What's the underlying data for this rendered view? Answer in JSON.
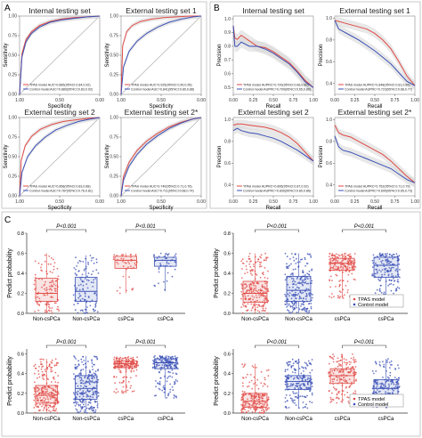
{
  "colors": {
    "tpas": "#e04a45",
    "control": "#3a4fb5",
    "tpas_fill": "#f2c4c0",
    "control_fill": "#c2cbe9",
    "band": "#d6d6d6",
    "frame": "#999999",
    "box": "#555555"
  },
  "panels": [
    {
      "letter": "A"
    },
    {
      "letter": "B"
    },
    {
      "letter": "C"
    }
  ],
  "chart_data": [
    {
      "id": "roc-internal",
      "type": "line",
      "title": "Internal testing set",
      "xlabel": "Specificity",
      "ylabel": "Sensitivity",
      "xticks": [
        "1.00",
        "0.50",
        "0.00"
      ],
      "yticks": [
        "0.00",
        "0.25",
        "0.50",
        "0.75",
        "1.00"
      ],
      "legend": [
        "TPAS model AUC=0.885(95%CI:0.84,0.92)",
        "Control model AUC=0.880(95%CI:0.83,0.92)"
      ],
      "series": [
        {
          "name": "TPAS model",
          "x": [
            1.0,
            0.97,
            0.92,
            0.85,
            0.75,
            0.62,
            0.48,
            0.32,
            0.15,
            0.0
          ],
          "y": [
            0.0,
            0.52,
            0.7,
            0.8,
            0.88,
            0.93,
            0.96,
            0.98,
            0.99,
            1.0
          ]
        },
        {
          "name": "Control model",
          "x": [
            1.0,
            0.97,
            0.92,
            0.85,
            0.75,
            0.62,
            0.48,
            0.32,
            0.15,
            0.0
          ],
          "y": [
            0.0,
            0.48,
            0.67,
            0.78,
            0.86,
            0.92,
            0.95,
            0.97,
            0.99,
            1.0
          ]
        }
      ]
    },
    {
      "id": "roc-ext1",
      "type": "line",
      "title": "External testing set 1",
      "xlabel": "Specificity",
      "ylabel": "Sensitivity",
      "xticks": [
        "1.00",
        "0.50",
        "0.00"
      ],
      "yticks": [
        "0.00",
        "0.25",
        "0.50",
        "0.75",
        "1.00"
      ],
      "legend": [
        "TPAS model AUC=0.925(95%CI:0.90,0.95)",
        "Control model AUC=0.841(95%CI:0.80,0.88)"
      ],
      "series": [
        {
          "name": "TPAS model",
          "x": [
            1.0,
            0.98,
            0.93,
            0.86,
            0.76,
            0.62,
            0.47,
            0.3,
            0.14,
            0.0
          ],
          "y": [
            0.0,
            0.62,
            0.8,
            0.88,
            0.93,
            0.96,
            0.98,
            0.99,
            1.0,
            1.0
          ]
        },
        {
          "name": "Control model",
          "x": [
            1.0,
            0.97,
            0.9,
            0.8,
            0.68,
            0.54,
            0.4,
            0.25,
            0.1,
            0.0
          ],
          "y": [
            0.0,
            0.35,
            0.55,
            0.68,
            0.78,
            0.86,
            0.92,
            0.96,
            0.99,
            1.0
          ]
        }
      ]
    },
    {
      "id": "roc-ext2",
      "type": "line",
      "title": "External testing set 2",
      "xlabel": "Specificity",
      "ylabel": "Sensitivity",
      "xticks": [
        "1.00",
        "0.50",
        "0.00"
      ],
      "yticks": [
        "0.00",
        "0.25",
        "0.50",
        "0.75",
        "1.00"
      ],
      "legend": [
        "TPAS model AUC=0.858(95%CI:0.83,0.88)",
        "Control model AUC=0.787(95%CI:0.76,0.81)"
      ],
      "series": [
        {
          "name": "TPAS model",
          "x": [
            1.0,
            0.98,
            0.93,
            0.85,
            0.74,
            0.6,
            0.45,
            0.3,
            0.14,
            0.0
          ],
          "y": [
            0.0,
            0.45,
            0.64,
            0.76,
            0.85,
            0.91,
            0.95,
            0.97,
            0.99,
            1.0
          ]
        },
        {
          "name": "Control model",
          "x": [
            1.0,
            0.97,
            0.9,
            0.8,
            0.68,
            0.55,
            0.41,
            0.26,
            0.12,
            0.0
          ],
          "y": [
            0.0,
            0.3,
            0.5,
            0.64,
            0.75,
            0.84,
            0.9,
            0.95,
            0.98,
            1.0
          ]
        }
      ]
    },
    {
      "id": "roc-ext2s",
      "type": "line",
      "title": "External testing set 2*",
      "xlabel": "Specificity",
      "ylabel": "Sensitivity",
      "xticks": [
        "1.00",
        "0.50",
        "0.00"
      ],
      "yticks": [
        "0.00",
        "0.25",
        "0.50",
        "0.75",
        "1.00"
      ],
      "legend": [
        "TPAS model AUC=0.740(95%CI:0.71,0.76)",
        "Control model AUC=0.711(95%CI:0.68,0.74)"
      ],
      "series": [
        {
          "name": "TPAS model",
          "x": [
            1.0,
            0.97,
            0.9,
            0.8,
            0.68,
            0.54,
            0.4,
            0.25,
            0.11,
            0.0
          ],
          "y": [
            0.0,
            0.25,
            0.43,
            0.58,
            0.7,
            0.8,
            0.88,
            0.94,
            0.98,
            1.0
          ]
        },
        {
          "name": "Control model",
          "x": [
            1.0,
            0.97,
            0.9,
            0.8,
            0.68,
            0.54,
            0.4,
            0.25,
            0.11,
            0.0
          ],
          "y": [
            0.0,
            0.2,
            0.38,
            0.53,
            0.66,
            0.77,
            0.86,
            0.93,
            0.98,
            1.0
          ]
        }
      ]
    },
    {
      "id": "pr-internal",
      "type": "line",
      "title": "Internal testing set",
      "xlabel": "Recall",
      "ylabel": "Precision",
      "xticks": [
        "0.00",
        "0.25",
        "0.50",
        "0.75",
        "1.00"
      ],
      "yticks": [
        "0.5",
        "0.6",
        "0.7",
        "0.8",
        "0.9",
        "1.0"
      ],
      "ylim": [
        0.45,
        1.02
      ],
      "legend": [
        "TPAS model AUPRC=0.720(95%CI:0.66,0.80)",
        "Control model AUPRC=0.709(95%CI:0.65,0.80)"
      ],
      "series": [
        {
          "name": "TPAS model",
          "x": [
            0.0,
            0.02,
            0.05,
            0.1,
            0.2,
            0.3,
            0.4,
            0.5,
            0.6,
            0.7,
            0.8,
            0.9,
            1.0
          ],
          "y": [
            0.95,
            0.86,
            0.85,
            0.88,
            0.84,
            0.8,
            0.79,
            0.76,
            0.72,
            0.68,
            0.62,
            0.55,
            0.5
          ]
        },
        {
          "name": "Control model",
          "x": [
            0.0,
            0.02,
            0.05,
            0.1,
            0.2,
            0.3,
            0.4,
            0.5,
            0.6,
            0.7,
            0.8,
            0.9,
            1.0
          ],
          "y": [
            0.95,
            0.8,
            0.8,
            0.83,
            0.8,
            0.8,
            0.78,
            0.75,
            0.71,
            0.67,
            0.61,
            0.54,
            0.5
          ]
        }
      ]
    },
    {
      "id": "pr-ext1",
      "type": "line",
      "title": "External testing set 1",
      "xlabel": "Recall",
      "ylabel": "Precision",
      "xticks": [
        "0.00",
        "0.25",
        "0.50",
        "0.75",
        "1.00"
      ],
      "yticks": [
        "0.4",
        "0.6",
        "0.8",
        "1.0"
      ],
      "ylim": [
        0.3,
        1.02
      ],
      "legend": [
        "TPAS model AUPRC=0.848(95%CI:0.81,0.89)",
        "Control model AUPRC=0.723(95%CI:0.68,0.77)"
      ],
      "series": [
        {
          "name": "TPAS model",
          "x": [
            0.0,
            0.05,
            0.1,
            0.2,
            0.3,
            0.4,
            0.5,
            0.6,
            0.7,
            0.8,
            0.9,
            1.0
          ],
          "y": [
            0.98,
            0.97,
            0.96,
            0.94,
            0.92,
            0.9,
            0.86,
            0.8,
            0.72,
            0.6,
            0.47,
            0.38
          ]
        },
        {
          "name": "Control model",
          "x": [
            0.0,
            0.05,
            0.1,
            0.2,
            0.3,
            0.4,
            0.5,
            0.6,
            0.7,
            0.8,
            0.9,
            1.0
          ],
          "y": [
            0.98,
            0.9,
            0.88,
            0.84,
            0.8,
            0.75,
            0.7,
            0.64,
            0.58,
            0.5,
            0.42,
            0.38
          ]
        }
      ]
    },
    {
      "id": "pr-ext2",
      "type": "line",
      "title": "External testing set 2",
      "xlabel": "Recall",
      "ylabel": "Precision",
      "xticks": [
        "0.00",
        "0.25",
        "0.50",
        "0.75",
        "1.00"
      ],
      "yticks": [
        "0.4",
        "0.6",
        "0.8",
        "1.0"
      ],
      "ylim": [
        0.3,
        1.02
      ],
      "legend": [
        "TPAS model AUPRC=0.895(95%CI:0.87,0.92)",
        "Control model AUPRC=0.830(95%CI:0.80,0.86)"
      ],
      "series": [
        {
          "name": "TPAS model",
          "x": [
            0.0,
            0.05,
            0.1,
            0.2,
            0.3,
            0.4,
            0.5,
            0.6,
            0.7,
            0.8,
            0.9,
            1.0
          ],
          "y": [
            0.95,
            0.96,
            0.96,
            0.95,
            0.94,
            0.93,
            0.91,
            0.88,
            0.84,
            0.78,
            0.7,
            0.62
          ]
        },
        {
          "name": "Control model",
          "x": [
            0.0,
            0.05,
            0.1,
            0.2,
            0.3,
            0.4,
            0.5,
            0.6,
            0.7,
            0.8,
            0.9,
            1.0
          ],
          "y": [
            0.9,
            0.92,
            0.9,
            0.88,
            0.87,
            0.85,
            0.83,
            0.8,
            0.76,
            0.72,
            0.67,
            0.62
          ]
        }
      ]
    },
    {
      "id": "pr-ext2s",
      "type": "line",
      "title": "External testing set 2*",
      "xlabel": "Recall",
      "ylabel": "Precision",
      "xticks": [
        "0.00",
        "0.25",
        "0.50",
        "0.75",
        "1.00"
      ],
      "yticks": [
        "0.4",
        "0.6",
        "0.8",
        "1.0"
      ],
      "ylim": [
        0.3,
        1.02
      ],
      "legend": [
        "TPAS model AUPRC=0.752(95%CI:0.71,0.79)",
        "Control model AUPRC=0.690(95%CI:0.65,0.73)"
      ],
      "series": [
        {
          "name": "TPAS model",
          "x": [
            0.0,
            0.05,
            0.1,
            0.2,
            0.3,
            0.4,
            0.5,
            0.6,
            0.7,
            0.8,
            0.9,
            1.0
          ],
          "y": [
            0.95,
            0.88,
            0.86,
            0.84,
            0.8,
            0.76,
            0.72,
            0.68,
            0.62,
            0.55,
            0.48,
            0.42
          ]
        },
        {
          "name": "Control model",
          "x": [
            0.0,
            0.05,
            0.1,
            0.2,
            0.3,
            0.4,
            0.5,
            0.6,
            0.7,
            0.8,
            0.9,
            1.0
          ],
          "y": [
            0.85,
            0.75,
            0.72,
            0.7,
            0.67,
            0.64,
            0.61,
            0.58,
            0.55,
            0.5,
            0.45,
            0.42
          ]
        }
      ]
    },
    {
      "id": "box-internal",
      "type": "box",
      "ylabel": "Predict probability",
      "yticks": [
        "0.0",
        "0.2",
        "0.4",
        "0.6",
        "0.8"
      ],
      "ylim": [
        0.0,
        0.8
      ],
      "categories": [
        "Non-csPCa",
        "Non-csPCa",
        "csPCa",
        "csPCa"
      ],
      "pvalues": [
        "P<0.001",
        "P<0.001"
      ],
      "legend": [],
      "groups": [
        {
          "series": "TPAS model",
          "n": 110,
          "q1": 0.12,
          "median": 0.2,
          "q3": 0.35,
          "min": 0.0,
          "max": 0.6
        },
        {
          "series": "Control model",
          "n": 110,
          "q1": 0.12,
          "median": 0.22,
          "q3": 0.36,
          "min": 0.0,
          "max": 0.58
        },
        {
          "series": "TPAS model",
          "n": 45,
          "q1": 0.45,
          "median": 0.53,
          "q3": 0.57,
          "min": 0.2,
          "max": 0.6
        },
        {
          "series": "Control model",
          "n": 45,
          "q1": 0.47,
          "median": 0.53,
          "q3": 0.56,
          "min": 0.22,
          "max": 0.6
        }
      ]
    },
    {
      "id": "box-ext1",
      "type": "box",
      "ylabel": "Predict probability",
      "yticks": [
        "0.0",
        "0.2",
        "0.4",
        "0.6",
        "0.8"
      ],
      "ylim": [
        0.0,
        0.8
      ],
      "categories": [
        "Non-csPCa",
        "Non-csPCa",
        "csPCa",
        "csPCa"
      ],
      "pvalues": [
        "P<0.001",
        "P<0.001"
      ],
      "legend": [
        "TPAS model",
        "Control model"
      ],
      "groups": [
        {
          "series": "TPAS model",
          "n": 230,
          "q1": 0.11,
          "median": 0.2,
          "q3": 0.32,
          "min": 0.0,
          "max": 0.6
        },
        {
          "series": "Control model",
          "n": 230,
          "q1": 0.12,
          "median": 0.23,
          "q3": 0.37,
          "min": 0.0,
          "max": 0.6
        },
        {
          "series": "TPAS model",
          "n": 180,
          "q1": 0.43,
          "median": 0.5,
          "q3": 0.55,
          "min": 0.15,
          "max": 0.6
        },
        {
          "series": "Control model",
          "n": 180,
          "q1": 0.36,
          "median": 0.48,
          "q3": 0.56,
          "min": 0.1,
          "max": 0.6
        }
      ]
    },
    {
      "id": "box-ext2",
      "type": "box",
      "ylabel": "Predict probability",
      "yticks": [
        "0.0",
        "0.2",
        "0.4",
        "0.6"
      ],
      "ylim": [
        0.0,
        0.65
      ],
      "categories": [
        "Non-csPCa",
        "Non-csPCa",
        "csPCa",
        "csPCa"
      ],
      "pvalues": [
        "P<0.001",
        "P<0.001"
      ],
      "legend": [],
      "groups": [
        {
          "series": "TPAS model",
          "n": 240,
          "q1": 0.1,
          "median": 0.18,
          "q3": 0.28,
          "min": 0.0,
          "max": 0.55
        },
        {
          "series": "Control model",
          "n": 240,
          "q1": 0.14,
          "median": 0.25,
          "q3": 0.38,
          "min": 0.0,
          "max": 0.58
        },
        {
          "series": "TPAS model",
          "n": 180,
          "q1": 0.46,
          "median": 0.5,
          "q3": 0.53,
          "min": 0.2,
          "max": 0.57
        },
        {
          "series": "Control model",
          "n": 180,
          "q1": 0.45,
          "median": 0.51,
          "q3": 0.55,
          "min": 0.15,
          "max": 0.58
        }
      ]
    },
    {
      "id": "box-ext2s",
      "type": "box",
      "ylabel": "Predict probability",
      "yticks": [
        "0.0",
        "0.2",
        "0.4",
        "0.6"
      ],
      "ylim": [
        0.0,
        0.65
      ],
      "categories": [
        "Non-csPCa",
        "Non-csPCa",
        "csPCa",
        "csPCa"
      ],
      "pvalues": [
        "P<0.001",
        "P<0.001"
      ],
      "legend": [
        "TPAS model",
        "Control model"
      ],
      "groups": [
        {
          "series": "TPAS model",
          "n": 200,
          "q1": 0.06,
          "median": 0.12,
          "q3": 0.2,
          "min": 0.0,
          "max": 0.5
        },
        {
          "series": "Control model",
          "n": 200,
          "q1": 0.24,
          "median": 0.32,
          "q3": 0.38,
          "min": 0.05,
          "max": 0.55
        },
        {
          "series": "TPAS model",
          "n": 180,
          "q1": 0.3,
          "median": 0.38,
          "q3": 0.45,
          "min": 0.1,
          "max": 0.6
        },
        {
          "series": "Control model",
          "n": 180,
          "q1": 0.19,
          "median": 0.25,
          "q3": 0.34,
          "min": 0.05,
          "max": 0.55
        }
      ]
    }
  ]
}
